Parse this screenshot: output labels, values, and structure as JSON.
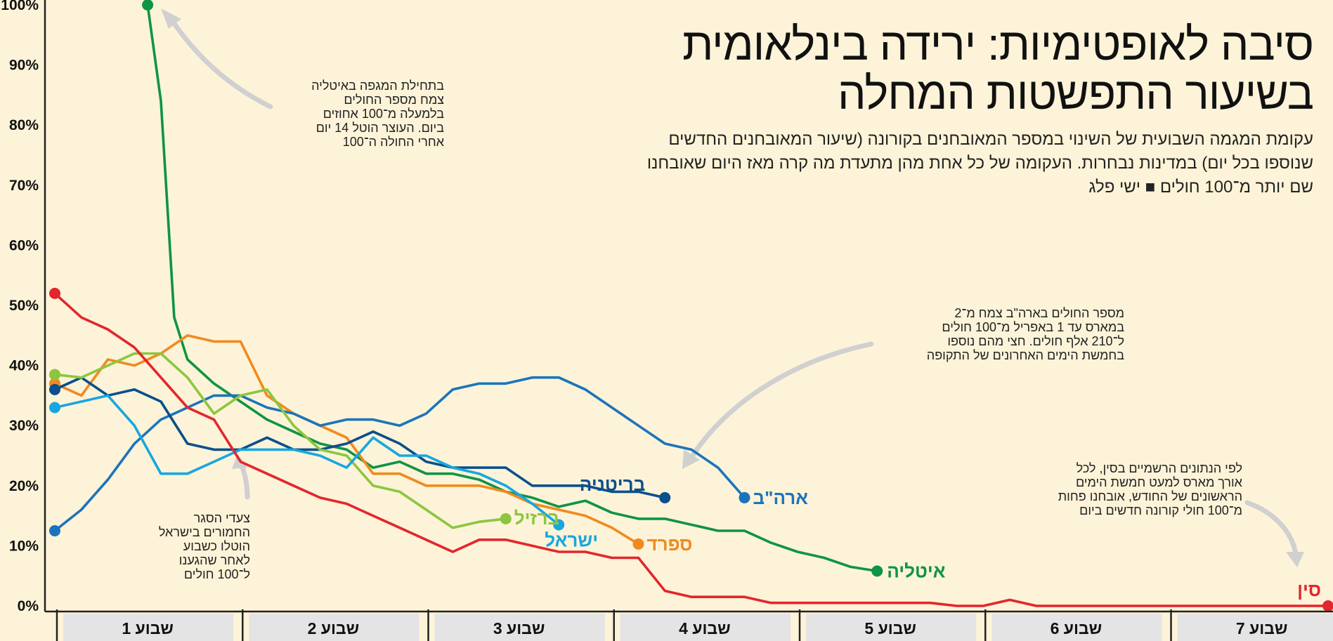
{
  "title": {
    "line1": "סיבה לאופטימיות: ירידה בינלאומית",
    "line2": "בשיעור התפשטות המחלה"
  },
  "subtitle": "עקומת המגמה השבועית של השינוי במספר המאובחנים בקורונה (שיעור המאובחנים החדשים שנוספו בכל יום) במדינות נבחרות. העקומה של כל אחת מהן מתעדת מה קרה מאז היום שאובחנו שם יותר מ־100 חולים ■ ישי פלג",
  "annotations": {
    "italy": "בתחילת המגפה באיטליה\nצמח מספר החולים\nבלמעלה מ־100 אחוזים\nביום. העוצר הוטל 14 יום\nאחרי החולה ה־100",
    "usa": "מספר החולים בארה\"ב צמח מ־2\nבמארס עד 1 באפריל מ־100 חולים\nל־210 אלף חולים. חצי מהם נוספו\nבחמשת הימים האחרונים של התקופה",
    "israel": "צעדי הסגר\nהחמורים בישראל\nהוטלו כשבוע\nלאחר שהגענו\nל־100 חולים",
    "china": "לפי הנתונים הרשמיים בסין, לכל\nאורך מארס למעט חמשת הימים\nהראשונים של החודש, אובחנו פחות\nמ־100 חולי קורונה חדשים ביום"
  },
  "colors": {
    "background": "#fdf3d8",
    "axis": "#222222",
    "week_box": "#e4e4e4",
    "arrow": "#d0d0d0"
  },
  "chart_data": {
    "type": "line",
    "xlabel": "",
    "ylabel": "",
    "x_unit": "days since 100th case",
    "xlim": [
      0,
      48
    ],
    "ylim": [
      0,
      100
    ],
    "y_ticks": [
      0,
      10,
      20,
      30,
      40,
      50,
      60,
      70,
      80,
      90,
      100
    ],
    "y_tick_labels": [
      "0%",
      "10%",
      "20%",
      "30%",
      "40%",
      "50%",
      "60%",
      "70%",
      "80%",
      "90%",
      "100%"
    ],
    "weeks": [
      {
        "label": "שבוע 1",
        "start": 0,
        "end": 7
      },
      {
        "label": "שבוע 2",
        "start": 7,
        "end": 14
      },
      {
        "label": "שבוע 3",
        "start": 14,
        "end": 21
      },
      {
        "label": "שבוע 4",
        "start": 21,
        "end": 28
      },
      {
        "label": "שבוע 5",
        "start": 28,
        "end": 35
      },
      {
        "label": "שבוע 6",
        "start": 35,
        "end": 42
      },
      {
        "label": "שבוע 7",
        "start": 42,
        "end": 49
      }
    ],
    "series": [
      {
        "name": "איטליה",
        "color": "#0e9444",
        "x": [
          3.5,
          4,
          4.5,
          5,
          6,
          7,
          8,
          9,
          10,
          11,
          12,
          13,
          14,
          15,
          16,
          17,
          18,
          19,
          20,
          21,
          22,
          23,
          24,
          25,
          26,
          27,
          28,
          29,
          30,
          31
        ],
        "values": [
          100,
          84,
          48,
          41,
          37,
          34,
          31,
          29,
          27,
          26,
          23,
          24,
          22,
          22,
          21,
          19,
          18,
          16.5,
          17.5,
          15.5,
          14.5,
          14.5,
          13.5,
          12.5,
          12.5,
          10.5,
          9,
          8,
          6.5,
          5.8
        ]
      },
      {
        "name": "ספרד",
        "color": "#f08a1f",
        "x": [
          0,
          1,
          2,
          3,
          4,
          5,
          6,
          7,
          8,
          9,
          10,
          11,
          12,
          13,
          14,
          15,
          16,
          17,
          18,
          19,
          20,
          21,
          22
        ],
        "values": [
          37,
          35,
          41,
          40,
          42,
          45,
          44,
          44,
          35,
          32,
          30,
          28,
          22,
          22,
          20,
          20,
          20,
          19,
          17,
          16,
          15,
          13,
          10.3
        ]
      },
      {
        "name": "ארה\"ב",
        "color": "#1b74bb",
        "x": [
          0,
          1,
          2,
          3,
          4,
          5,
          6,
          7,
          8,
          9,
          10,
          11,
          12,
          13,
          14,
          15,
          16,
          17,
          18,
          19,
          20,
          21,
          22,
          23,
          24,
          25,
          26
        ],
        "values": [
          12.5,
          16,
          21,
          27,
          31,
          33,
          35,
          35,
          33,
          32,
          30,
          31,
          31,
          30,
          32,
          36,
          37,
          37,
          38,
          38,
          36,
          33,
          30,
          27,
          26,
          23,
          18
        ]
      },
      {
        "name": "בריטניה",
        "color": "#0b4f8c",
        "x": [
          0,
          1,
          2,
          3,
          4,
          5,
          6,
          7,
          8,
          9,
          10,
          11,
          12,
          13,
          14,
          15,
          16,
          17,
          18,
          19,
          20,
          21,
          22,
          23
        ],
        "values": [
          36,
          38,
          35,
          36,
          34,
          27,
          26,
          26,
          28,
          26,
          26,
          27,
          29,
          27,
          24,
          23,
          23,
          23,
          20,
          20,
          20,
          19,
          19,
          18
        ]
      },
      {
        "name": "ברזיל",
        "color": "#8cc63f",
        "x": [
          0,
          1,
          2,
          3,
          4,
          5,
          6,
          7,
          8,
          9,
          10,
          11,
          12,
          13,
          14,
          15,
          16,
          17
        ],
        "values": [
          38.5,
          38,
          40,
          42,
          42,
          38,
          32,
          35,
          36,
          30,
          26,
          25,
          20,
          19,
          16,
          13,
          14,
          14.5
        ]
      },
      {
        "name": "ישראל",
        "color": "#16a7e0",
        "x": [
          0,
          1,
          2,
          3,
          4,
          5,
          6,
          7,
          8,
          9,
          10,
          11,
          12,
          13,
          14,
          15,
          16,
          17,
          18,
          19
        ],
        "values": [
          33,
          34,
          35,
          30,
          22,
          22,
          24,
          26,
          26,
          26,
          25,
          23,
          28,
          25,
          25,
          23,
          22,
          20,
          17,
          13.5
        ]
      },
      {
        "name": "סין",
        "color": "#e3262d",
        "x": [
          0,
          1,
          2,
          3,
          4,
          5,
          6,
          7,
          8,
          9,
          10,
          11,
          12,
          13,
          14,
          15,
          16,
          17,
          18,
          19,
          20,
          21,
          22,
          23,
          24,
          25,
          26,
          27,
          28,
          29,
          30,
          31,
          32,
          33,
          34,
          35,
          36,
          37,
          38,
          39,
          40,
          41,
          42,
          43,
          44,
          45,
          46,
          47,
          48
        ],
        "values": [
          52,
          48,
          46,
          43,
          38,
          33,
          31,
          24,
          22,
          20,
          18,
          17,
          15,
          13,
          11,
          9,
          11,
          11,
          10,
          9,
          9,
          8,
          8,
          2.5,
          1.5,
          1.5,
          1.5,
          0.5,
          0.5,
          0.5,
          0.5,
          0.5,
          0.5,
          0.5,
          0,
          0,
          1,
          0,
          0,
          0,
          0,
          0,
          0,
          0,
          0,
          0,
          0,
          0,
          0
        ]
      }
    ]
  }
}
